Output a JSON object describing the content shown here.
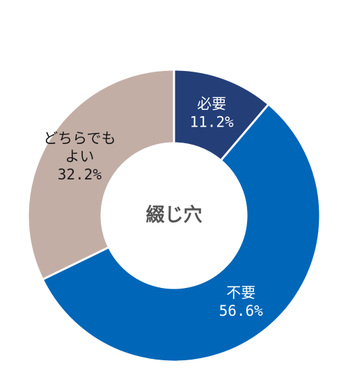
{
  "chart_data": {
    "type": "pie",
    "style": "donut",
    "center_label": "綴じ穴",
    "slices": [
      {
        "label": "必要",
        "value": 11.2,
        "value_text": "11.2%",
        "color": "#243f78",
        "label_color": "#ffffff"
      },
      {
        "label": "不要",
        "value": 56.6,
        "value_text": "56.6%",
        "color": "#0066b8",
        "label_color": "#ffffff"
      },
      {
        "label": "どちらでもよい",
        "value": 32.2,
        "value_text": "32.2%",
        "color": "#c3aea6",
        "label_color": "#1a1a1a"
      }
    ]
  }
}
